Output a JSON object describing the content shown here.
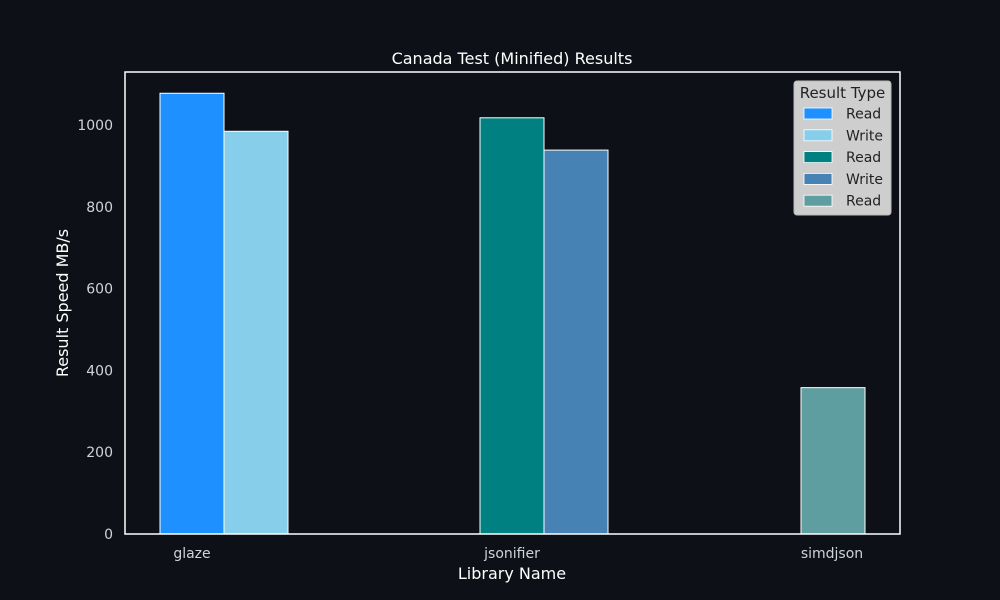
{
  "chart_data": {
    "type": "bar",
    "title": "Canada Test (Minified) Results",
    "xlabel": "Library Name",
    "ylabel": "Result Speed MB/s",
    "ylim": [
      0,
      1130
    ],
    "yticks": [
      0,
      200,
      400,
      600,
      800,
      1000
    ],
    "categories": [
      "glaze",
      "jsonifier",
      "simdjson"
    ],
    "bars": [
      {
        "library": "glaze",
        "type": "Read",
        "value": 1078,
        "color": "#1e90ff"
      },
      {
        "library": "glaze",
        "type": "Write",
        "value": 985,
        "color": "#87ceeb"
      },
      {
        "library": "jsonifier",
        "type": "Read",
        "value": 1018,
        "color": "#008080"
      },
      {
        "library": "jsonifier",
        "type": "Write",
        "value": 939,
        "color": "#4682b4"
      },
      {
        "library": "simdjson",
        "type": "Read",
        "value": 358,
        "color": "#5f9ea0"
      }
    ],
    "legend": {
      "title": "Result Type",
      "placement": "top-right",
      "entries": [
        {
          "label": "Read",
          "color": "#1e90ff"
        },
        {
          "label": "Write",
          "color": "#87ceeb"
        },
        {
          "label": "Read",
          "color": "#008080"
        },
        {
          "label": "Write",
          "color": "#4682b4"
        },
        {
          "label": "Read",
          "color": "#5f9ea0"
        }
      ]
    },
    "grid": false,
    "background": "#0d1017",
    "axis_color": "#ffffff"
  }
}
